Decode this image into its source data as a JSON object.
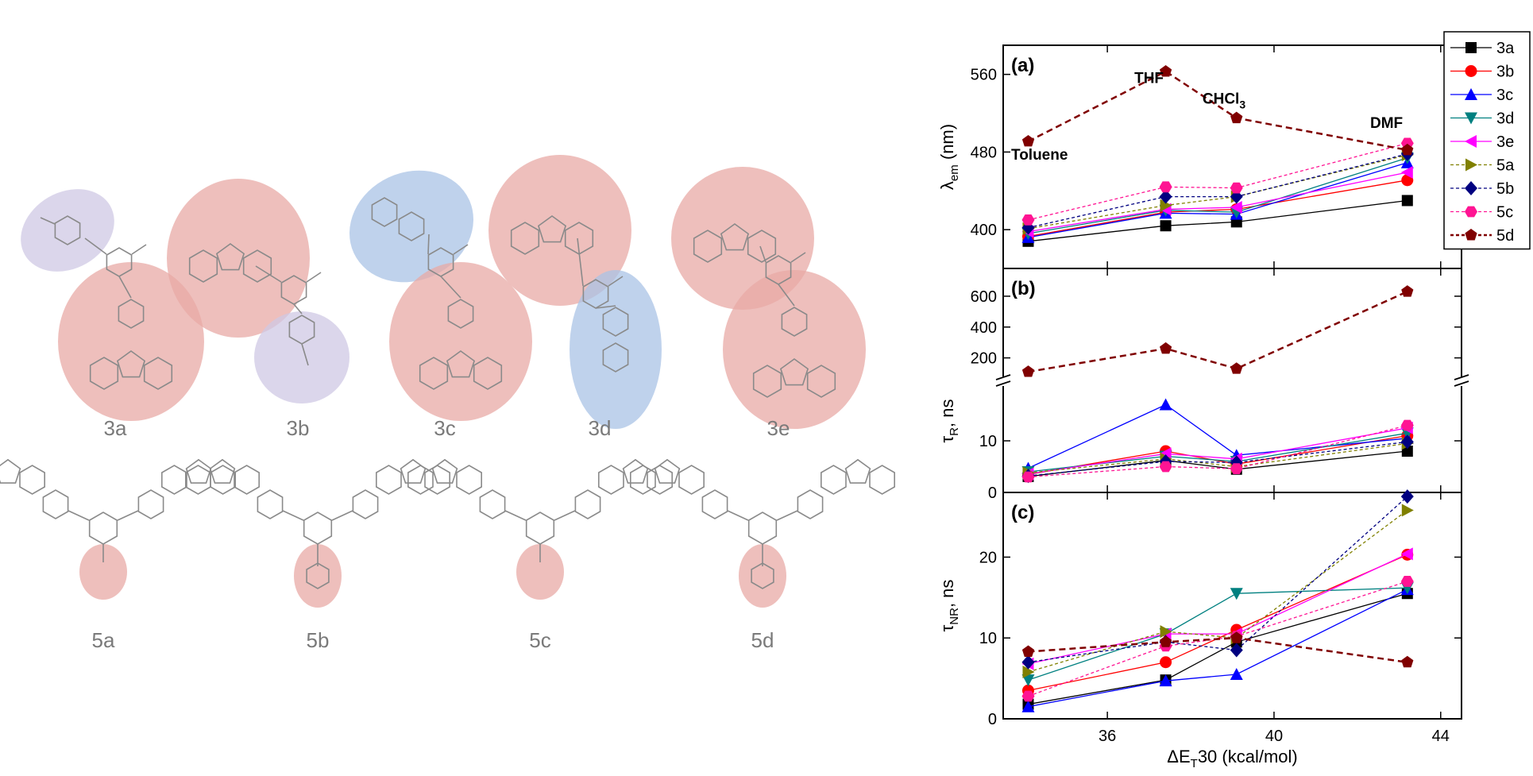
{
  "structures": {
    "row1": [
      {
        "label": "3a",
        "highlights": [
          {
            "color": "#bcb4d8",
            "cx": 0,
            "cy": 0
          }
        ]
      },
      {
        "label": "3b"
      },
      {
        "label": "3c"
      },
      {
        "label": "3d"
      },
      {
        "label": "3e"
      }
    ],
    "row2": [
      {
        "label": "5a"
      },
      {
        "label": "5b"
      },
      {
        "label": "5c"
      },
      {
        "label": "5d"
      }
    ],
    "colors": {
      "red": "#e8a9a6",
      "violet": "#cfc8e4",
      "blue": "#a9c3e6"
    }
  },
  "chart_data": [
    {
      "type": "line",
      "panel": "(a)",
      "ylabel_main": "λ",
      "ylabel_sub": "em",
      "ylabel_unit": " (nm)",
      "ylim": [
        360,
        590
      ],
      "yticks": [
        400,
        480,
        560
      ],
      "x": [
        34.1,
        37.4,
        39.1,
        43.2
      ],
      "annotations": [
        {
          "text": "Toluene",
          "x": 34.1,
          "y": 472
        },
        {
          "text": "THF",
          "x": 37.0,
          "y": 551
        },
        {
          "text": "CHCl",
          "sub": "3",
          "x": 38.8,
          "y": 530
        },
        {
          "text": "DMF",
          "x": 42.7,
          "y": 505
        }
      ],
      "series": [
        {
          "name": "3a",
          "values": [
            388,
            404,
            408,
            430
          ]
        },
        {
          "name": "3b",
          "values": [
            393,
            418,
            421,
            451
          ]
        },
        {
          "name": "3c",
          "values": [
            392,
            417,
            416,
            469
          ]
        },
        {
          "name": "3d",
          "values": [
            396,
            420,
            418,
            474
          ]
        },
        {
          "name": "3e",
          "values": [
            398,
            421,
            423,
            459
          ]
        },
        {
          "name": "5a",
          "values": [
            401,
            425,
            434,
            477
          ]
        },
        {
          "name": "5b",
          "values": [
            402,
            434,
            434,
            478
          ]
        },
        {
          "name": "5c",
          "values": [
            410,
            444,
            443,
            489
          ]
        },
        {
          "name": "5d",
          "values": [
            491,
            563,
            515,
            482
          ]
        }
      ]
    },
    {
      "type": "line",
      "panel": "(b)",
      "ylabel_main": "τ",
      "ylabel_sub": "R",
      "ylabel_unit": ", ns",
      "broken_axis": true,
      "lower_ylim": [
        0,
        20
      ],
      "lower_yticks": [
        0,
        10
      ],
      "upper_ylim": [
        100,
        780
      ],
      "upper_yticks": [
        200,
        400,
        600
      ],
      "x": [
        34.1,
        37.4,
        39.1,
        43.2
      ],
      "series": [
        {
          "name": "3a",
          "values": [
            3.1,
            6.2,
            4.5,
            8.0
          ]
        },
        {
          "name": "3b",
          "values": [
            3.5,
            8.0,
            5.5,
            11.0
          ]
        },
        {
          "name": "3c",
          "values": [
            4.7,
            17.0,
            7.2,
            10.5
          ]
        },
        {
          "name": "3d",
          "values": [
            4.0,
            7.0,
            6.0,
            11.5
          ]
        },
        {
          "name": "3e",
          "values": [
            3.6,
            7.5,
            6.5,
            12.5
          ]
        },
        {
          "name": "5a",
          "values": [
            3.8,
            6.5,
            5.0,
            9.5
          ]
        },
        {
          "name": "5b",
          "values": [
            3.2,
            6.0,
            5.8,
            9.8
          ]
        },
        {
          "name": "5c",
          "values": [
            3.0,
            5.0,
            4.6,
            13.0
          ]
        },
        {
          "name": "5d",
          "values": [
            110,
            260,
            130,
            630
          ]
        }
      ]
    },
    {
      "type": "line",
      "panel": "(c)",
      "ylabel_main": "τ",
      "ylabel_sub": "NR",
      "ylabel_unit": ", ns",
      "xlabel_main": "ΔE",
      "xlabel_sub": "T",
      "xlabel_unit": "30 (kcal/mol)",
      "xlim": [
        33.5,
        44.5
      ],
      "xticks": [
        36,
        40,
        44
      ],
      "ylim": [
        0,
        28
      ],
      "yticks": [
        0,
        10,
        20
      ],
      "x": [
        34.1,
        37.4,
        39.1,
        43.2
      ],
      "series": [
        {
          "name": "3a",
          "values": [
            1.8,
            4.8,
            9.5,
            15.5
          ]
        },
        {
          "name": "3b",
          "values": [
            3.5,
            7.0,
            11.0,
            20.3
          ]
        },
        {
          "name": "3c",
          "values": [
            1.5,
            4.7,
            5.5,
            16.0
          ]
        },
        {
          "name": "3d",
          "values": [
            4.8,
            10.5,
            15.5,
            16.2
          ]
        },
        {
          "name": "3e",
          "values": [
            6.8,
            10.5,
            10.5,
            20.4
          ]
        },
        {
          "name": "5a",
          "values": [
            5.8,
            10.8,
            10.0,
            25.8
          ]
        },
        {
          "name": "5b",
          "values": [
            7.0,
            9.5,
            8.5,
            27.5
          ]
        },
        {
          "name": "5c",
          "values": [
            2.8,
            9.0,
            10.2,
            17.0
          ]
        },
        {
          "name": "5d",
          "values": [
            8.3,
            9.5,
            10.0,
            7.0
          ]
        }
      ]
    }
  ],
  "legend": {
    "placement": "top-right",
    "entries": [
      {
        "name": "3a",
        "color": "#000000",
        "marker": "square",
        "dash": false
      },
      {
        "name": "3b",
        "color": "#ff0000",
        "marker": "circle",
        "dash": false
      },
      {
        "name": "3c",
        "color": "#0000ff",
        "marker": "triangle-up",
        "dash": false
      },
      {
        "name": "3d",
        "color": "#008080",
        "marker": "triangle-down",
        "dash": false
      },
      {
        "name": "3e",
        "color": "#ff00ff",
        "marker": "triangle-left",
        "dash": false
      },
      {
        "name": "5a",
        "color": "#808000",
        "marker": "triangle-right",
        "dash": true
      },
      {
        "name": "5b",
        "color": "#000080",
        "marker": "diamond",
        "dash": true
      },
      {
        "name": "5c",
        "color": "#ff1493",
        "marker": "hexagon",
        "dash": true
      },
      {
        "name": "5d",
        "color": "#800000",
        "marker": "pentagon",
        "dash": true
      }
    ]
  }
}
